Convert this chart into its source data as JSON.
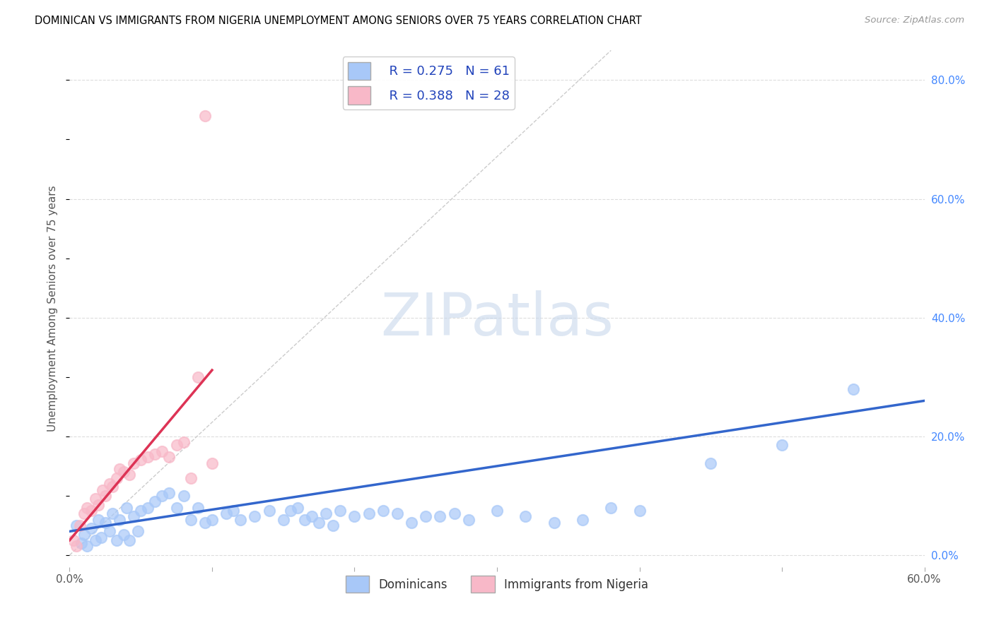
{
  "title": "DOMINICAN VS IMMIGRANTS FROM NIGERIA UNEMPLOYMENT AMONG SENIORS OVER 75 YEARS CORRELATION CHART",
  "source": "Source: ZipAtlas.com",
  "ylabel": "Unemployment Among Seniors over 75 years",
  "xlim": [
    0.0,
    0.6
  ],
  "ylim": [
    -0.02,
    0.85
  ],
  "xticks": [
    0.0,
    0.1,
    0.2,
    0.3,
    0.4,
    0.5,
    0.6
  ],
  "xtick_labels": [
    "0.0%",
    "",
    "",
    "",
    "",
    "",
    "60.0%"
  ],
  "yticks_right": [
    0.0,
    0.2,
    0.4,
    0.6,
    0.8
  ],
  "ytick_labels_right": [
    "0.0%",
    "20.0%",
    "40.0%",
    "60.0%",
    "80.0%"
  ],
  "blue_color": "#a8c8f8",
  "pink_color": "#f8b8c8",
  "blue_line_color": "#3366cc",
  "pink_line_color": "#dd3355",
  "diag_color": "#cccccc",
  "watermark_color": "#c8d8ec",
  "watermark": "ZIPatlas",
  "legend_label_blue": "Dominicans",
  "legend_label_pink": "Immigrants from Nigeria",
  "blue_scatter_x": [
    0.005,
    0.008,
    0.01,
    0.012,
    0.015,
    0.018,
    0.02,
    0.022,
    0.025,
    0.028,
    0.03,
    0.033,
    0.035,
    0.038,
    0.04,
    0.042,
    0.045,
    0.048,
    0.05,
    0.055,
    0.06,
    0.065,
    0.07,
    0.075,
    0.08,
    0.085,
    0.09,
    0.095,
    0.1,
    0.11,
    0.115,
    0.12,
    0.13,
    0.14,
    0.15,
    0.155,
    0.16,
    0.165,
    0.17,
    0.175,
    0.18,
    0.185,
    0.19,
    0.2,
    0.21,
    0.22,
    0.23,
    0.24,
    0.25,
    0.26,
    0.27,
    0.28,
    0.3,
    0.32,
    0.34,
    0.36,
    0.38,
    0.4,
    0.45,
    0.5,
    0.55
  ],
  "blue_scatter_y": [
    0.05,
    0.02,
    0.035,
    0.015,
    0.045,
    0.025,
    0.06,
    0.03,
    0.055,
    0.04,
    0.07,
    0.025,
    0.06,
    0.035,
    0.08,
    0.025,
    0.065,
    0.04,
    0.075,
    0.08,
    0.09,
    0.1,
    0.105,
    0.08,
    0.1,
    0.06,
    0.08,
    0.055,
    0.06,
    0.07,
    0.075,
    0.06,
    0.065,
    0.075,
    0.06,
    0.075,
    0.08,
    0.06,
    0.065,
    0.055,
    0.07,
    0.05,
    0.075,
    0.065,
    0.07,
    0.075,
    0.07,
    0.055,
    0.065,
    0.065,
    0.07,
    0.06,
    0.075,
    0.065,
    0.055,
    0.06,
    0.08,
    0.075,
    0.155,
    0.185,
    0.28
  ],
  "pink_scatter_x": [
    0.003,
    0.005,
    0.007,
    0.01,
    0.012,
    0.015,
    0.018,
    0.02,
    0.023,
    0.025,
    0.028,
    0.03,
    0.033,
    0.035,
    0.038,
    0.042,
    0.045,
    0.05,
    0.055,
    0.06,
    0.065,
    0.07,
    0.075,
    0.08,
    0.085,
    0.09,
    0.095,
    0.1
  ],
  "pink_scatter_y": [
    0.025,
    0.015,
    0.05,
    0.07,
    0.08,
    0.075,
    0.095,
    0.085,
    0.11,
    0.1,
    0.12,
    0.115,
    0.13,
    0.145,
    0.14,
    0.135,
    0.155,
    0.16,
    0.165,
    0.17,
    0.175,
    0.165,
    0.185,
    0.19,
    0.13,
    0.3,
    0.74,
    0.155
  ]
}
